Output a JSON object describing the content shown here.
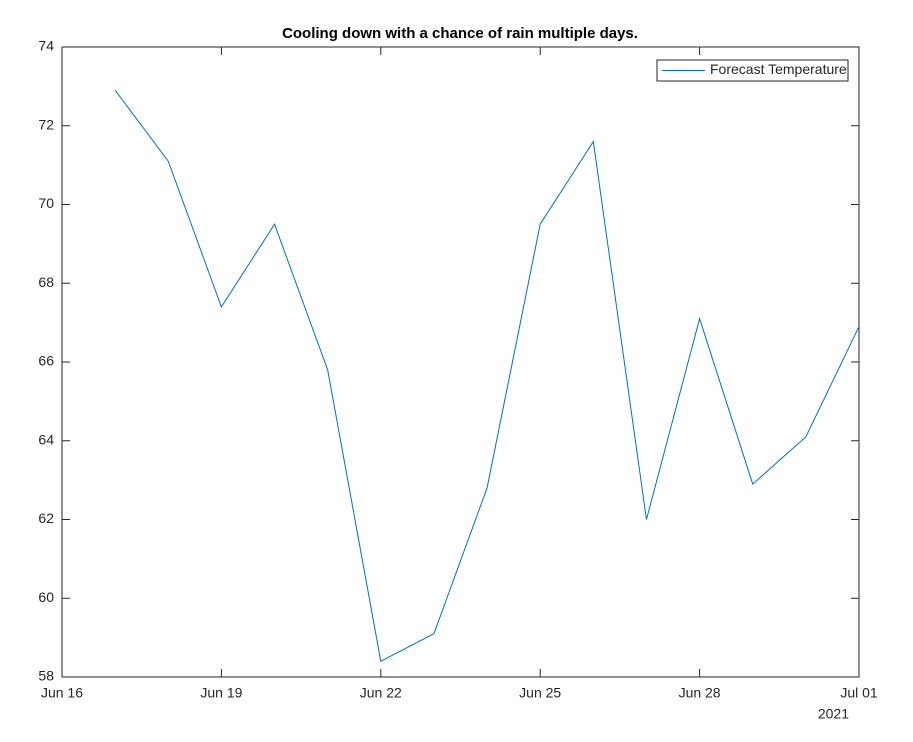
{
  "chart_data": {
    "type": "line",
    "title": "Cooling down with a chance of rain multiple days.",
    "x": [
      "2021-06-17",
      "2021-06-18",
      "2021-06-19",
      "2021-06-20",
      "2021-06-21",
      "2021-06-22",
      "2021-06-23",
      "2021-06-24",
      "2021-06-25",
      "2021-06-26",
      "2021-06-27",
      "2021-06-28",
      "2021-06-29",
      "2021-06-30",
      "2021-07-01"
    ],
    "series": [
      {
        "name": "Forecast Temperature",
        "color": "#0072bd",
        "values": [
          72.9,
          71.1,
          67.4,
          69.5,
          65.8,
          58.4,
          59.1,
          62.8,
          69.5,
          71.6,
          62.0,
          67.1,
          62.9,
          64.1,
          66.9
        ]
      }
    ],
    "xlim": [
      "2021-06-16",
      "2021-07-01"
    ],
    "xticks": [
      {
        "value": "2021-06-16",
        "label": "Jun 16"
      },
      {
        "value": "2021-06-19",
        "label": "Jun 19"
      },
      {
        "value": "2021-06-22",
        "label": "Jun 22"
      },
      {
        "value": "2021-06-25",
        "label": "Jun 25"
      },
      {
        "value": "2021-06-28",
        "label": "Jun 28"
      },
      {
        "value": "2021-07-01",
        "label": "Jul 01"
      }
    ],
    "x_year_label": "2021",
    "ylim": [
      58,
      74
    ],
    "yticks": [
      58,
      60,
      62,
      64,
      66,
      68,
      70,
      72,
      74
    ],
    "grid": false,
    "legend": "top-right"
  }
}
